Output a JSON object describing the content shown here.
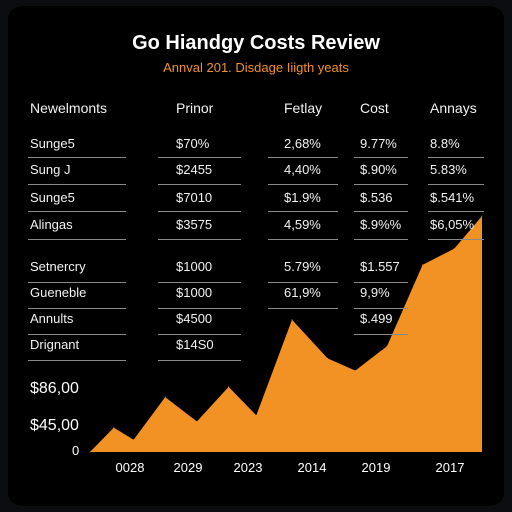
{
  "header": {
    "title": "Go Hiandgy Costs Review",
    "subtitle": "Annval 201. Disdage Iiigth yeats"
  },
  "table": {
    "columns": [
      "Newelmonts",
      "Prinor",
      "Fetlay",
      "Cost",
      "Annays"
    ],
    "rows": [
      [
        "Sunge5",
        "$70%",
        "2,68%",
        "9.77%",
        "8.8%"
      ],
      [
        "Sung J",
        "$2455",
        "4,40%",
        "$.90%",
        "5.83%"
      ],
      [
        "Sunge5",
        "$7010",
        "$1.9%",
        "$.536",
        "$.541%"
      ],
      [
        "Alingas",
        "$3575",
        "4,59%",
        "$.9%%",
        "$6,05%"
      ],
      [
        "Setnercry",
        "$1000",
        "5.79%",
        "$1.557",
        ""
      ],
      [
        "Gueneble",
        "$1000",
        "61,9%",
        "9,9%",
        ""
      ],
      [
        "Annults",
        "$4500",
        "",
        "$.499",
        ""
      ],
      [
        "Drignant",
        "$14S0",
        "",
        "",
        ""
      ]
    ]
  },
  "chart_data": {
    "type": "area",
    "y_tick_labels": [
      "$86,00",
      "$45,00",
      "0"
    ],
    "x_tick_labels": [
      "0028",
      "2029",
      "2023",
      "2014",
      "2019",
      "2017"
    ],
    "points": [
      [
        0,
        0
      ],
      [
        0.3,
        12
      ],
      [
        0.55,
        6
      ],
      [
        0.95,
        27
      ],
      [
        1.35,
        15
      ],
      [
        1.75,
        32
      ],
      [
        2.1,
        18
      ],
      [
        2.55,
        65
      ],
      [
        3.0,
        46
      ],
      [
        3.35,
        40
      ],
      [
        3.75,
        52
      ],
      [
        4.2,
        92
      ],
      [
        4.6,
        100
      ],
      [
        4.95,
        116
      ]
    ],
    "x_range": [
      0,
      5
    ],
    "y_range": [
      0,
      118
    ],
    "fill_color": "#f29225",
    "grid": false
  },
  "colors": {
    "background": "#000000",
    "accent": "#f29225",
    "text": "#ffffff"
  }
}
